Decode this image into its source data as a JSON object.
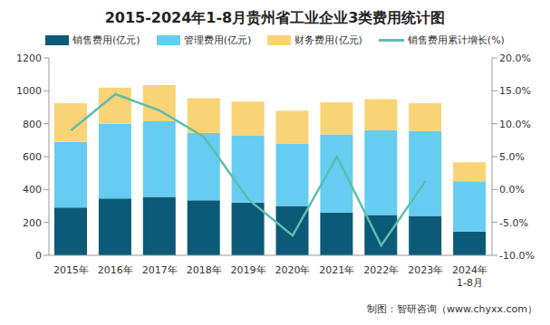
{
  "chart_data": {
    "type": "bar",
    "title": "2015-2024年1-8月贵州省工业企业3类费用统计图",
    "categories": [
      "2015年",
      "2016年",
      "2017年",
      "2018年",
      "2019年",
      "2020年",
      "2021年",
      "2022年",
      "2023年",
      "2024年\n1-8月"
    ],
    "series": [
      {
        "name": "销售费用(亿元)",
        "color": "#0b5a78",
        "values": [
          290,
          345,
          355,
          335,
          320,
          300,
          260,
          245,
          240,
          145
        ]
      },
      {
        "name": "管理费用(亿元)",
        "color": "#66ccf2",
        "values": [
          400,
          455,
          460,
          410,
          410,
          380,
          475,
          515,
          515,
          305
        ]
      },
      {
        "name": "财务费用(亿元)",
        "color": "#f9d476",
        "values": [
          235,
          220,
          220,
          210,
          205,
          200,
          195,
          190,
          170,
          115
        ]
      },
      {
        "name": "销售费用累计增长(%)",
        "color": "#5bbfae",
        "type": "line",
        "axis": "y2",
        "marker": "none",
        "values": [
          9.0,
          14.5,
          12.0,
          8.0,
          -1.5,
          -7.0,
          5.0,
          -8.5,
          1.3,
          null
        ]
      }
    ],
    "stacked": true,
    "grid": false,
    "legend": "top",
    "ylim": [
      0,
      1200
    ],
    "yticks": [
      0,
      200,
      400,
      600,
      800,
      1000,
      1200
    ],
    "y2lim": [
      -10,
      20
    ],
    "y2ticks": [
      {
        "value": -10,
        "label": "-10.0%"
      },
      {
        "value": -5,
        "label": "-5.0%"
      },
      {
        "value": 0,
        "label": "0.0%"
      },
      {
        "value": 5,
        "label": "5.0%"
      },
      {
        "value": 10,
        "label": "10.0%"
      },
      {
        "value": 15,
        "label": "15.0%"
      },
      {
        "value": 20,
        "label": "20.0%"
      }
    ],
    "annotations": [
      "制图：智研咨询（www.chyxx.com）"
    ]
  }
}
